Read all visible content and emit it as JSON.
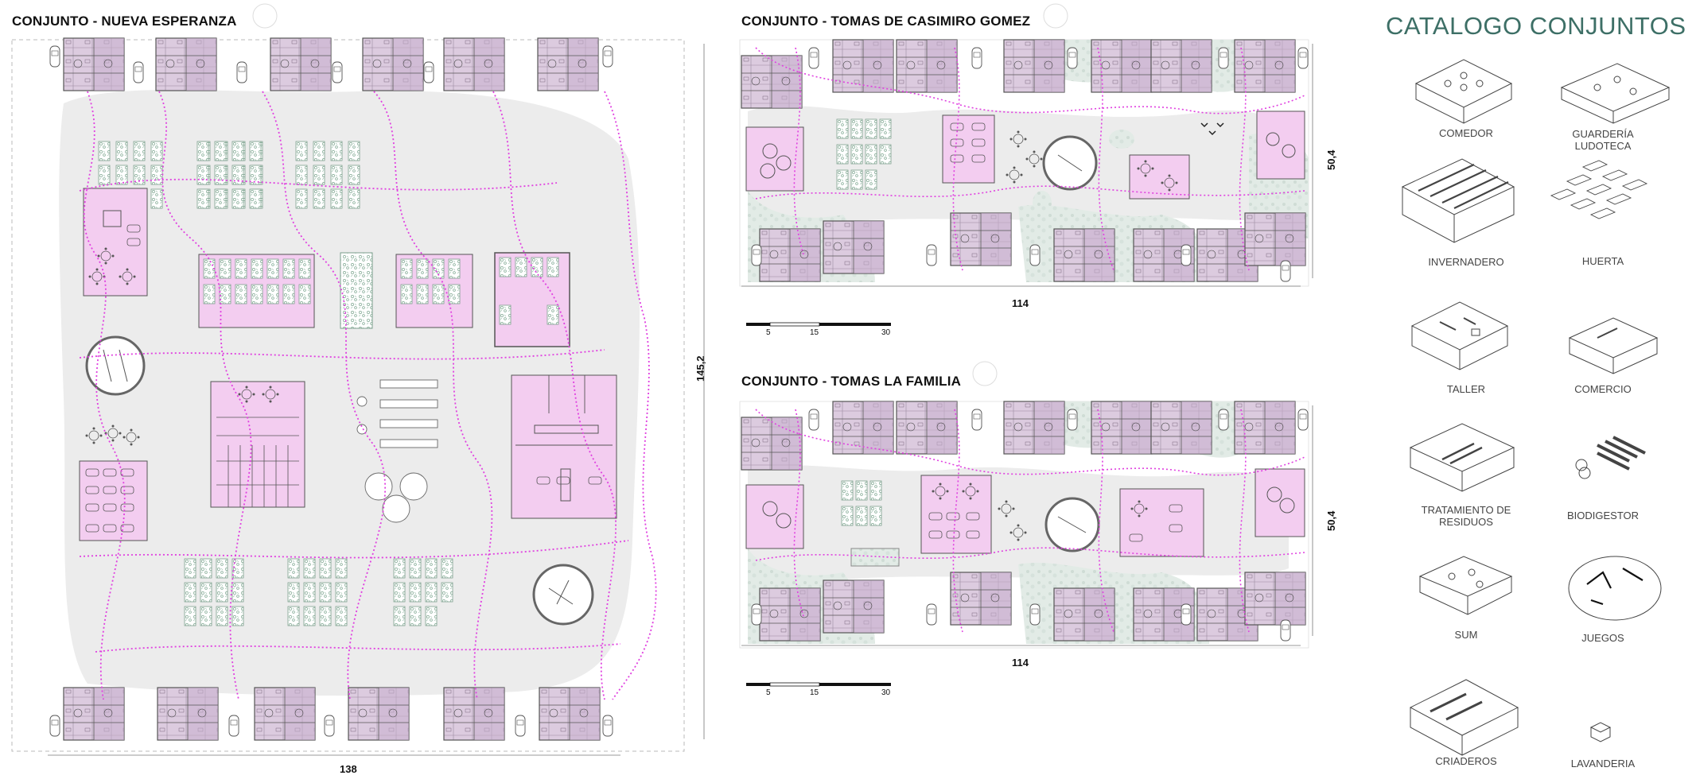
{
  "plans": {
    "nueva_esperanza": {
      "title": "CONJUNTO - NUEVA ESPERANZA",
      "width_dim": "138",
      "height_dim": "145,2"
    },
    "casimiro_gomez": {
      "title": "CONJUNTO - TOMAS DE CASIMIRO GOMEZ",
      "width_dim": "114",
      "height_dim": "50,4"
    },
    "la_familia": {
      "title": "CONJUNTO - TOMAS LA FAMILIA",
      "width_dim": "114",
      "height_dim": "50,4"
    }
  },
  "scale_bar": {
    "ticks": [
      "5",
      "15",
      "30"
    ]
  },
  "catalog": {
    "title": "CATALOGO CONJUNTOS",
    "items": [
      {
        "label": "COMEDOR",
        "icon": "dining-hall-axonometric-icon"
      },
      {
        "label": "GUARDERÍA  LUDOTECA",
        "icon": "nursery-axonometric-icon"
      },
      {
        "label": "INVERNADERO",
        "icon": "greenhouse-axonometric-icon"
      },
      {
        "label": "HUERTA",
        "icon": "garden-beds-axonometric-icon"
      },
      {
        "label": "TALLER",
        "icon": "workshop-axonometric-icon"
      },
      {
        "label": "COMERCIO",
        "icon": "shop-axonometric-icon"
      },
      {
        "label": "TRATAMIENTO DE RESIDUOS",
        "icon": "waste-treatment-axonometric-icon"
      },
      {
        "label": "BIODIGESTOR",
        "icon": "biodigester-axonometric-icon"
      },
      {
        "label": "SUM",
        "icon": "multipurpose-room-axonometric-icon"
      },
      {
        "label": "JUEGOS",
        "icon": "playground-axonometric-icon"
      },
      {
        "label": "CRIADEROS",
        "icon": "breeding-axonometric-icon"
      },
      {
        "label": "LAVANDERIA",
        "icon": "laundry-axonometric-icon"
      }
    ]
  },
  "colors": {
    "housing": "#d9c6dc",
    "facility": "#f3cdf0",
    "path": "#e040e0",
    "garden": "#8fb7a3",
    "catalog_title": "#3d6f66"
  }
}
